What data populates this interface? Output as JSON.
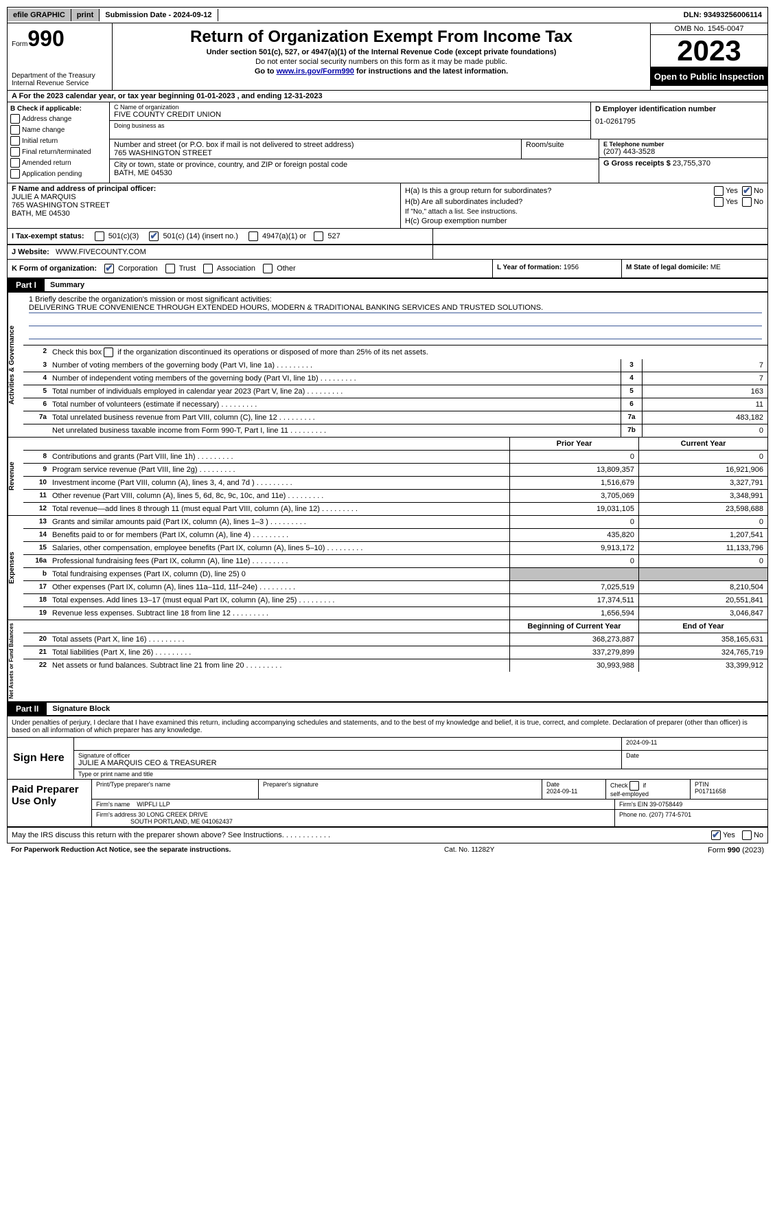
{
  "topbar": {
    "efile": "efile GRAPHIC",
    "print": "print",
    "submission_date_label": "Submission Date - 2024-09-12",
    "dln": "DLN: 93493256006114"
  },
  "header": {
    "form_label": "Form",
    "form_number": "990",
    "title": "Return of Organization Exempt From Income Tax",
    "subtitle1": "Under section 501(c), 527, or 4947(a)(1) of the Internal Revenue Code (except private foundations)",
    "subtitle2": "Do not enter social security numbers on this form as it may be made public.",
    "subtitle3_pre": "Go to ",
    "subtitle3_link": "www.irs.gov/Form990",
    "subtitle3_post": " for instructions and the latest information.",
    "dept": "Department of the Treasury",
    "irs": "Internal Revenue Service",
    "omb": "OMB No. 1545-0047",
    "year": "2023",
    "public": "Open to Public Inspection"
  },
  "rowA": "A For the 2023 calendar year, or tax year beginning 01-01-2023   , and ending 12-31-2023",
  "sectionB": {
    "title": "B Check if applicable:",
    "items": [
      "Address change",
      "Name change",
      "Initial return",
      "Final return/terminated",
      "Amended return",
      "Application pending"
    ]
  },
  "sectionC": {
    "lbl_name": "C Name of organization",
    "name": "FIVE COUNTY CREDIT UNION",
    "lbl_dba": "Doing business as",
    "dba": "",
    "lbl_addr": "Number and street (or P.O. box if mail is not delivered to street address)",
    "addr": "765 WASHINGTON STREET",
    "lbl_room": "Room/suite",
    "room": "",
    "lbl_city": "City or town, state or province, country, and ZIP or foreign postal code",
    "city": "BATH, ME  04530"
  },
  "sectionD": {
    "lbl": "D Employer identification number",
    "val": "01-0261795"
  },
  "sectionE": {
    "lbl": "E Telephone number",
    "val": "(207) 443-3528"
  },
  "sectionG": {
    "lbl": "G Gross receipts $",
    "val": "23,755,370"
  },
  "sectionF": {
    "lbl": "F Name and address of principal officer:",
    "name": "JULIE A MARQUIS",
    "addr1": "765 WASHINGTON STREET",
    "addr2": "BATH, ME  04530"
  },
  "sectionH": {
    "a_lbl": "H(a)  Is this a group return for subordinates?",
    "b_lbl": "H(b)  Are all subordinates included?",
    "b_note": "If \"No,\" attach a list. See instructions.",
    "c_lbl": "H(c)  Group exemption number",
    "yes": "Yes",
    "no": "No"
  },
  "sectionI": {
    "lbl": "I   Tax-exempt status:",
    "opt1": "501(c)(3)",
    "opt2_pre": "501(c) (",
    "opt2_num": "14",
    "opt2_post": ") (insert no.)",
    "opt3": "4947(a)(1) or",
    "opt4": "527"
  },
  "sectionJ": {
    "lbl": "J   Website:",
    "val": "WWW.FIVECOUNTY.COM"
  },
  "sectionK": {
    "lbl": "K Form of organization:",
    "opts": [
      "Corporation",
      "Trust",
      "Association",
      "Other"
    ]
  },
  "sectionL": {
    "lbl": "L Year of formation:",
    "val": "1956"
  },
  "sectionM": {
    "lbl": "M State of legal domicile:",
    "val": "ME"
  },
  "part1": {
    "tag": "Part I",
    "title": "Summary",
    "line1_lbl": "1   Briefly describe the organization's mission or most significant activities:",
    "mission": "DELIVERING TRUE CONVENIENCE THROUGH EXTENDED HOURS, MODERN & TRADITIONAL BANKING SERVICES AND TRUSTED SOLUTIONS.",
    "line2": "Check this box      if the organization discontinued its operations or disposed of more than 25% of its net assets.",
    "governance_tab": "Activities & Governance",
    "revenue_tab": "Revenue",
    "expenses_tab": "Expenses",
    "netassets_tab": "Net Assets or Fund Balances",
    "lines_single": [
      {
        "n": "3",
        "desc": "Number of voting members of the governing body (Part VI, line 1a)",
        "box": "3",
        "val": "7"
      },
      {
        "n": "4",
        "desc": "Number of independent voting members of the governing body (Part VI, line 1b)",
        "box": "4",
        "val": "7"
      },
      {
        "n": "5",
        "desc": "Total number of individuals employed in calendar year 2023 (Part V, line 2a)",
        "box": "5",
        "val": "163"
      },
      {
        "n": "6",
        "desc": "Total number of volunteers (estimate if necessary)",
        "box": "6",
        "val": "11"
      },
      {
        "n": "7a",
        "desc": "Total unrelated business revenue from Part VIII, column (C), line 12",
        "box": "7a",
        "val": "483,182"
      },
      {
        "n": "",
        "desc": "Net unrelated business taxable income from Form 990-T, Part I, line 11",
        "box": "7b",
        "val": "0"
      }
    ],
    "col_prior": "Prior Year",
    "col_curr": "Current Year",
    "revenue_lines": [
      {
        "n": "8",
        "desc": "Contributions and grants (Part VIII, line 1h)",
        "prior": "0",
        "curr": "0"
      },
      {
        "n": "9",
        "desc": "Program service revenue (Part VIII, line 2g)",
        "prior": "13,809,357",
        "curr": "16,921,906"
      },
      {
        "n": "10",
        "desc": "Investment income (Part VIII, column (A), lines 3, 4, and 7d )",
        "prior": "1,516,679",
        "curr": "3,327,791"
      },
      {
        "n": "11",
        "desc": "Other revenue (Part VIII, column (A), lines 5, 6d, 8c, 9c, 10c, and 11e)",
        "prior": "3,705,069",
        "curr": "3,348,991"
      },
      {
        "n": "12",
        "desc": "Total revenue—add lines 8 through 11 (must equal Part VIII, column (A), line 12)",
        "prior": "19,031,105",
        "curr": "23,598,688"
      }
    ],
    "expense_lines": [
      {
        "n": "13",
        "desc": "Grants and similar amounts paid (Part IX, column (A), lines 1–3 )",
        "prior": "0",
        "curr": "0"
      },
      {
        "n": "14",
        "desc": "Benefits paid to or for members (Part IX, column (A), line 4)",
        "prior": "435,820",
        "curr": "1,207,541"
      },
      {
        "n": "15",
        "desc": "Salaries, other compensation, employee benefits (Part IX, column (A), lines 5–10)",
        "prior": "9,913,172",
        "curr": "11,133,796"
      },
      {
        "n": "16a",
        "desc": "Professional fundraising fees (Part IX, column (A), line 11e)",
        "prior": "0",
        "curr": "0"
      },
      {
        "n": "b",
        "desc": "Total fundraising expenses (Part IX, column (D), line 25) 0",
        "prior": "SHADED",
        "curr": "SHADED"
      },
      {
        "n": "17",
        "desc": "Other expenses (Part IX, column (A), lines 11a–11d, 11f–24e)",
        "prior": "7,025,519",
        "curr": "8,210,504"
      },
      {
        "n": "18",
        "desc": "Total expenses. Add lines 13–17 (must equal Part IX, column (A), line 25)",
        "prior": "17,374,511",
        "curr": "20,551,841"
      },
      {
        "n": "19",
        "desc": "Revenue less expenses. Subtract line 18 from line 12",
        "prior": "1,656,594",
        "curr": "3,046,847"
      }
    ],
    "col_begin": "Beginning of Current Year",
    "col_end": "End of Year",
    "netassets_lines": [
      {
        "n": "20",
        "desc": "Total assets (Part X, line 16)",
        "prior": "368,273,887",
        "curr": "358,165,631"
      },
      {
        "n": "21",
        "desc": "Total liabilities (Part X, line 26)",
        "prior": "337,279,899",
        "curr": "324,765,719"
      },
      {
        "n": "22",
        "desc": "Net assets or fund balances. Subtract line 21 from line 20",
        "prior": "30,993,988",
        "curr": "33,399,912"
      }
    ]
  },
  "part2": {
    "tag": "Part II",
    "title": "Signature Block",
    "declaration": "Under penalties of perjury, I declare that I have examined this return, including accompanying schedules and statements, and to the best of my knowledge and belief, it is true, correct, and complete. Declaration of preparer (other than officer) is based on all information of which preparer has any knowledge."
  },
  "sign": {
    "here": "Sign Here",
    "sig_officer_lbl": "Signature of officer",
    "officer_name": "JULIE A MARQUIS CEO & TREASURER",
    "name_title_lbl": "Type or print name and title",
    "date_lbl": "Date",
    "date_val": "2024-09-11"
  },
  "prep": {
    "title": "Paid Preparer Use Only",
    "print_name_lbl": "Print/Type preparer's name",
    "print_name": "",
    "prep_sig_lbl": "Preparer's signature",
    "date_lbl": "Date",
    "date_val": "2024-09-11",
    "check_lbl": "Check       if self-employed",
    "ptin_lbl": "PTIN",
    "ptin": "P01711658",
    "firm_name_lbl": "Firm's name",
    "firm_name": "WIPFLI LLP",
    "firm_ein_lbl": "Firm's EIN",
    "firm_ein": "39-0758449",
    "firm_addr_lbl": "Firm's address",
    "firm_addr1": "30 LONG CREEK DRIVE",
    "firm_addr2": "SOUTH PORTLAND, ME  041062437",
    "phone_lbl": "Phone no.",
    "phone": "(207) 774-5701"
  },
  "discuss": {
    "text": "May the IRS discuss this return with the preparer shown above? See Instructions.",
    "yes": "Yes",
    "no": "No"
  },
  "footer": {
    "pra": "For Paperwork Reduction Act Notice, see the separate instructions.",
    "cat": "Cat. No. 11282Y",
    "form": "Form 990 (2023)"
  }
}
